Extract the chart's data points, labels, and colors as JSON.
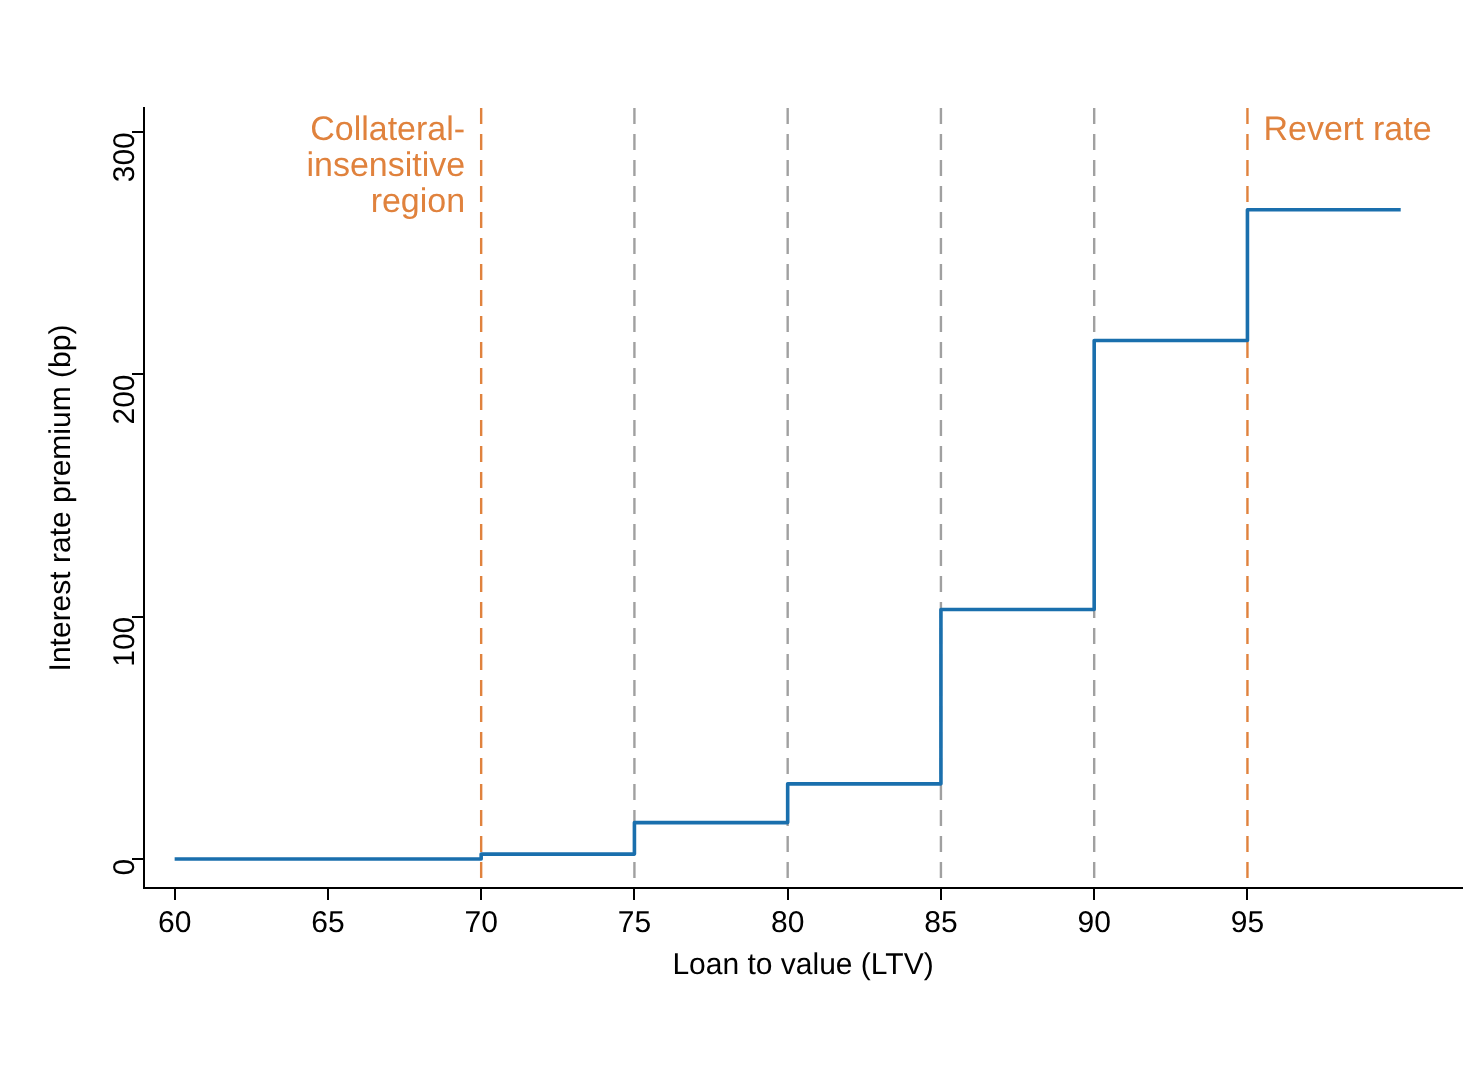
{
  "chart_data": {
    "type": "step",
    "xlabel": "Loan to value (LTV)",
    "ylabel": "Interest rate premium (bp)",
    "x": [
      60,
      70,
      75,
      80,
      85,
      90,
      95,
      100
    ],
    "series": [
      {
        "color": "#1a6fad",
        "values": [
          0,
          2,
          15,
          31,
          103,
          214,
          268,
          268
        ]
      }
    ],
    "xlim": [
      59,
      102
    ],
    "xticks": [
      60,
      65,
      70,
      75,
      80,
      85,
      90,
      95
    ],
    "ylim": [
      -12,
      310
    ],
    "yticks": [
      0,
      100,
      200,
      300
    ],
    "grid": false,
    "legend": false,
    "line_style": "solid",
    "marker": "none",
    "ref_lines": [
      {
        "axis": "x",
        "value": 70,
        "label": "Collateral-\ninsensitive\nregion",
        "color": "#e0823d",
        "line_style": "dashed"
      },
      {
        "axis": "x",
        "value": 75,
        "color": "#a0a0a0",
        "line_style": "dashed"
      },
      {
        "axis": "x",
        "value": 80,
        "color": "#a0a0a0",
        "line_style": "dashed"
      },
      {
        "axis": "x",
        "value": 85,
        "color": "#a0a0a0",
        "line_style": "dashed"
      },
      {
        "axis": "x",
        "value": 90,
        "color": "#a0a0a0",
        "line_style": "dashed"
      },
      {
        "axis": "x",
        "value": 95,
        "label": "Revert rate",
        "color": "#e0823d",
        "line_style": "dashed"
      }
    ]
  }
}
